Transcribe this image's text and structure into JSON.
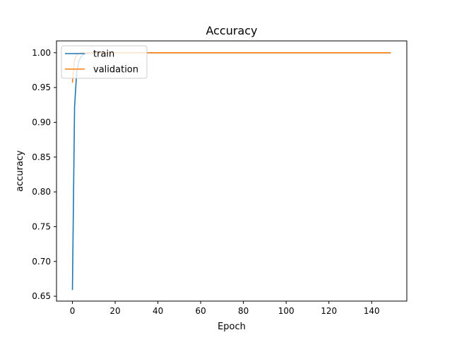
{
  "chart_data": {
    "type": "line",
    "title": "Accuracy",
    "xlabel": "Epoch",
    "ylabel": "accuracy",
    "xlim": [
      -7.45,
      156.45
    ],
    "ylim": [
      0.643,
      1.017
    ],
    "xticks": [
      0,
      20,
      40,
      60,
      80,
      100,
      120,
      140
    ],
    "yticks": [
      0.65,
      0.7,
      0.75,
      0.8,
      0.85,
      0.9,
      0.95,
      1.0
    ],
    "ytick_labels": [
      "0.65",
      "0.70",
      "0.75",
      "0.80",
      "0.85",
      "0.90",
      "0.95",
      "1.00"
    ],
    "grid": false,
    "legend": {
      "position": "top-left"
    },
    "series": [
      {
        "name": "train",
        "color": "#1f77b4",
        "points": [
          [
            0,
            0.659
          ],
          [
            1,
            0.922
          ],
          [
            2,
            0.972
          ],
          [
            3,
            0.988
          ],
          [
            4,
            0.994
          ],
          [
            5,
            0.997
          ],
          [
            7,
            0.999
          ],
          [
            10,
            0.9995
          ],
          [
            20,
            1.0
          ],
          [
            149,
            1.0
          ]
        ]
      },
      {
        "name": "validation",
        "color": "#ff7f0e",
        "points": [
          [
            0,
            0.957
          ],
          [
            1,
            0.99
          ],
          [
            2,
            0.997
          ],
          [
            3,
            0.999
          ],
          [
            5,
            1.0
          ],
          [
            149,
            1.0
          ]
        ]
      }
    ]
  }
}
